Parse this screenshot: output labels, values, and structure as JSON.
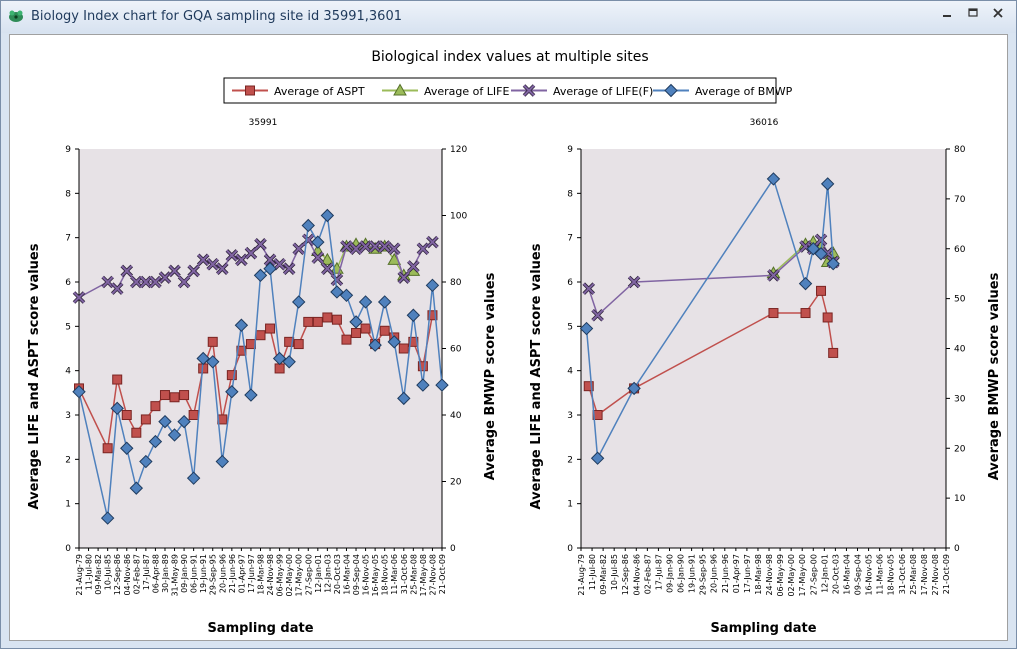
{
  "window": {
    "title": "Biology Index chart for GQA sampling site id 35991,3601",
    "minimize_icon": "minimize-icon",
    "maximize_icon": "maximize-icon",
    "close_icon": "close-icon"
  },
  "chart_data": {
    "type": "line",
    "title": "Biological index values at multiple sites",
    "legend": [
      "Average of ASPT",
      "Average of LIFE",
      "Average of LIFE(F)",
      "Average of BMWP"
    ],
    "legend_placement": "top-center",
    "colors": {
      "ASPT": "#c0504d",
      "LIFE": "#9bbb59",
      "LIFE_F": "#8064a2",
      "BMWP": "#4f81bd",
      "plot_bg": "#e7e2e6"
    },
    "x_categories": [
      "21-Aug-79",
      "11-Jul-80",
      "09-Mar-82",
      "10-Jul-85",
      "12-Sep-86",
      "04-Nov-86",
      "02-Feb-87",
      "17-Jul-87",
      "06-Apr-88",
      "30-Jan-89",
      "31-May-89",
      "09-Jan-90",
      "06-Jun-91",
      "19-Jun-91",
      "29-Sep-95",
      "20-Jun-96",
      "21-Jun-96",
      "01-Apr-97",
      "17-Jun-97",
      "18-Mar-98",
      "24-Nov-98",
      "06-May-99",
      "02-May-00",
      "17-May-00",
      "27-Sep-00",
      "12-Jan-01",
      "12-Jan-03",
      "20-Oct-03",
      "16-Mar-04",
      "09-Sep-04",
      "16-Nov-05",
      "16-May-05",
      "18-Nov-05",
      "11-Mar-06",
      "31-Oct-06",
      "25-Mar-08",
      "17-May-08",
      "27-Nov-08",
      "21-Oct-09"
    ],
    "panels": [
      {
        "title": "35991",
        "xlabel": "Sampling date",
        "ylabel_left": "Average LIFE  and ASPT score values",
        "ylabel_right": "Average BMWP score values",
        "ylim_left": [
          0,
          9
        ],
        "ylim_right": [
          0,
          120
        ],
        "yticks_left": [
          "0",
          "1",
          "2",
          "3",
          "4",
          "5",
          "6",
          "7",
          "8",
          "9"
        ],
        "yticks_right": [
          "0",
          "20",
          "40",
          "60",
          "80",
          "100",
          "120"
        ],
        "xtick_labels": [
          "21-Aug-79",
          "11-Jul-80",
          "09-Mar-82",
          "10-Jul-85",
          "12-Sep-86",
          "04-Nov-86",
          "02-Feb-87",
          "17-Jul-87",
          "06-Apr-88",
          "30-Jan-89",
          "31-May-89",
          "09-Jan-90",
          "06-Jun-91",
          "19-Jun-91",
          "29-Sep-95",
          "20-Jun-96",
          "21-Jun-96",
          "01-Apr-97",
          "17-Jun-97",
          "18-Mar-98",
          "24-Nov-98",
          "06-May-99",
          "02-May-00",
          "17-May-00",
          "27-Sep-00",
          "12-Jan-01",
          "12-Jan-03",
          "20-Oct-03",
          "16-Mar-04",
          "09-Sep-04",
          "16-Nov-05",
          "16-May-05",
          "18-Nov-05",
          "11-Mar-06",
          "31-Oct-06",
          "25-Mar-08",
          "17-May-08",
          "27-Nov-08",
          "21-Oct-09"
        ],
        "series": [
          {
            "name": "Average of ASPT",
            "axis": "left",
            "x": [
              0,
              3,
              4,
              5,
              6,
              7,
              8,
              9,
              10,
              11,
              12,
              13,
              14,
              15,
              16,
              17,
              18,
              19,
              20,
              21,
              22,
              23,
              24,
              25,
              26,
              27,
              28,
              29,
              30,
              31,
              32,
              33,
              34,
              35,
              36,
              37
            ],
            "values": [
              3.6,
              2.25,
              3.8,
              3.0,
              2.6,
              2.9,
              3.2,
              3.45,
              3.4,
              3.45,
              3.0,
              4.05,
              4.65,
              2.9,
              3.9,
              4.45,
              4.6,
              4.8,
              4.95,
              4.05,
              4.65,
              4.6,
              5.1,
              5.1,
              5.2,
              5.15,
              4.7,
              4.85,
              4.95,
              4.6,
              4.9,
              4.75,
              4.5,
              4.65,
              4.1,
              5.25
            ]
          },
          {
            "name": "Average of LIFE",
            "axis": "left",
            "x": [
              25,
              26,
              27,
              28,
              29,
              30,
              31,
              32,
              33,
              34,
              35
            ],
            "values": [
              6.7,
              6.5,
              6.3,
              6.8,
              6.85,
              6.85,
              6.75,
              6.8,
              6.5,
              6.15,
              6.25
            ]
          },
          {
            "name": "Average of LIFE(F)",
            "axis": "left",
            "x": [
              0,
              3,
              4,
              5,
              6,
              7,
              8,
              9,
              10,
              11,
              12,
              13,
              14,
              15,
              16,
              17,
              18,
              19,
              20,
              21,
              22,
              23,
              24,
              25,
              26,
              27,
              28,
              29,
              30,
              31,
              32,
              33,
              34,
              35,
              36,
              37
            ],
            "values": [
              5.65,
              6.0,
              5.85,
              6.25,
              6.0,
              6.0,
              6.0,
              6.1,
              6.25,
              6.0,
              6.25,
              6.5,
              6.4,
              6.3,
              6.6,
              6.5,
              6.65,
              6.85,
              6.5,
              6.4,
              6.3,
              6.75,
              6.95,
              6.55,
              6.3,
              6.05,
              6.8,
              6.75,
              6.8,
              6.8,
              6.8,
              6.75,
              6.1,
              6.35,
              6.75,
              6.9
            ]
          },
          {
            "name": "Average of BMWP",
            "axis": "right",
            "x": [
              0,
              3,
              4,
              5,
              6,
              7,
              8,
              9,
              10,
              11,
              12,
              13,
              14,
              15,
              16,
              17,
              18,
              19,
              20,
              21,
              22,
              23,
              24,
              25,
              26,
              27,
              28,
              29,
              30,
              31,
              32,
              33,
              34,
              35,
              36,
              37,
              38
            ],
            "values": [
              47,
              9,
              42,
              30,
              18,
              26,
              32,
              38,
              34,
              38,
              21,
              57,
              56,
              26,
              47,
              67,
              46,
              82,
              84,
              57,
              56,
              74,
              97,
              92,
              100,
              77,
              76,
              68,
              74,
              61,
              74,
              62,
              45,
              70,
              49,
              79,
              49
            ]
          }
        ]
      },
      {
        "title": "36016",
        "xlabel": "Sampling date",
        "ylabel_left": "Average LIFE  and ASPT score values",
        "ylabel_right": "Average BMWP score values",
        "ylim_left": [
          0,
          9
        ],
        "ylim_right": [
          0,
          80
        ],
        "yticks_left": [
          "0",
          "1",
          "2",
          "3",
          "4",
          "5",
          "6",
          "7",
          "8",
          "9"
        ],
        "yticks_right": [
          "0",
          "10",
          "20",
          "30",
          "40",
          "50",
          "60",
          "70",
          "80"
        ],
        "xtick_labels": [
          "21-Aug-79",
          "11-Jul-80",
          "09-Mar-82",
          "10-Jul-85",
          "12-Sep-86",
          "04-Nov-86",
          "02-Feb-87",
          "17-Jul-87",
          "09-Jan-90",
          "06-Jan-90",
          "19-Jun-91",
          "29-Sep-95",
          "20-Jun-96",
          "21-Jun-96",
          "01-Apr-97",
          "17-Jun-97",
          "18-Mar-98",
          "24-Nov-98",
          "06-May-99",
          "02-May-00",
          "17-May-00",
          "27-Sep-00",
          "12-Jan-01",
          "20-Oct-03",
          "16-Mar-04",
          "09-Sep-04",
          "16-Nov-05",
          "11-Mar-06",
          "18-Nov-05",
          "31-Oct-06",
          "25-Mar-08",
          "17-Nov-08",
          "27-Nov-08",
          "21-Oct-09"
        ],
        "series": [
          {
            "name": "Average of ASPT",
            "axis": "left",
            "x": [
              0.7,
              1.5,
              4.8,
              17.4,
              20.3,
              21.7,
              22.3,
              22.8
            ],
            "values": [
              3.65,
              3.0,
              3.6,
              5.3,
              5.3,
              5.8,
              5.2,
              4.4
            ]
          },
          {
            "name": "Average of LIFE",
            "axis": "left",
            "x": [
              17.4,
              20.3,
              21.0,
              21.7,
              22.3,
              22.8
            ],
            "values": [
              6.2,
              6.85,
              6.9,
              6.8,
              6.45,
              6.65
            ]
          },
          {
            "name": "Average of LIFE(F)",
            "axis": "left",
            "x": [
              0.7,
              1.5,
              4.8,
              17.4,
              20.3,
              21.0,
              21.7,
              22.3,
              22.8
            ],
            "values": [
              5.85,
              5.25,
              6.0,
              6.15,
              6.8,
              6.75,
              6.95,
              6.65,
              6.45
            ]
          },
          {
            "name": "Average of BMWP",
            "axis": "right",
            "x": [
              0.5,
              1.5,
              4.8,
              17.4,
              20.3,
              21.0,
              21.7,
              22.3,
              22.8
            ],
            "values": [
              44,
              18,
              32,
              74,
              53,
              60,
              59,
              73,
              57
            ]
          }
        ]
      }
    ]
  }
}
